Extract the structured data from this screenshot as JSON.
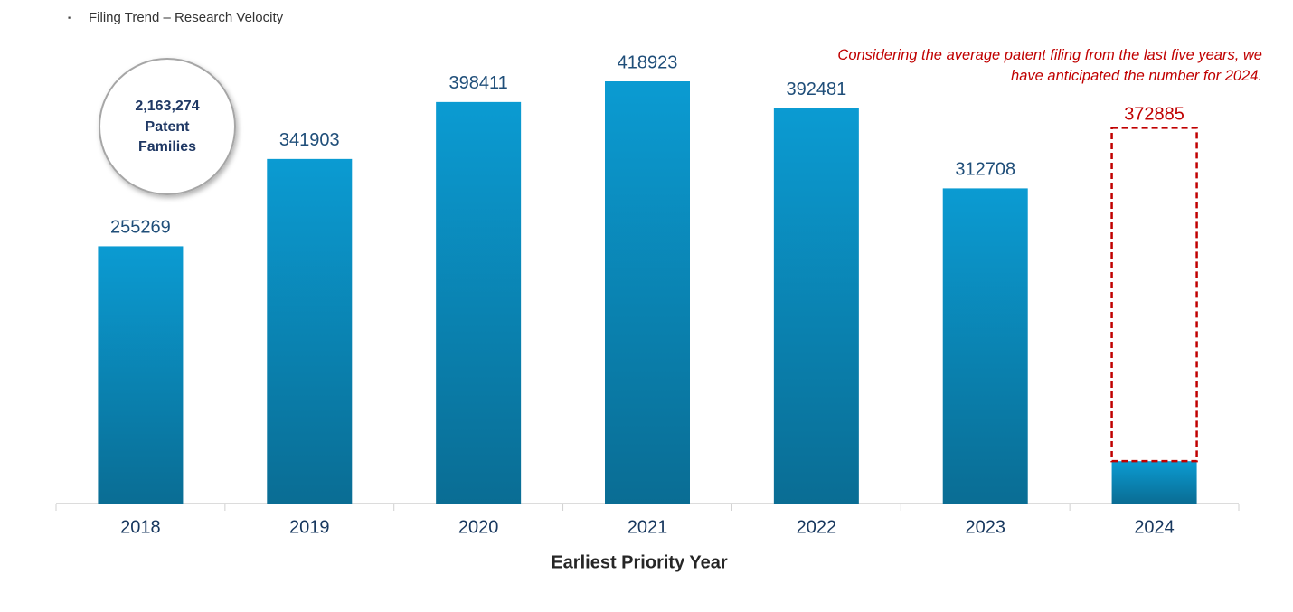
{
  "chart_data": {
    "type": "bar",
    "title": "Filing Trend – Research Velocity",
    "annotation": "Considering the average patent filing from the last five years, we have anticipated the number for 2024.",
    "badge": [
      "2,163,274",
      "Patent",
      "Families"
    ],
    "xlabel": "Earliest Priority Year",
    "categories": [
      "2018",
      "2019",
      "2020",
      "2021",
      "2022",
      "2023",
      "2024"
    ],
    "values": [
      255269,
      341903,
      398411,
      418923,
      392481,
      312708,
      42000
    ],
    "projected_values": [
      null,
      null,
      null,
      null,
      null,
      null,
      372885
    ],
    "color": "#0a8cc0",
    "projection_color": "#c00000",
    "ylim": [
      0,
      420000
    ]
  }
}
